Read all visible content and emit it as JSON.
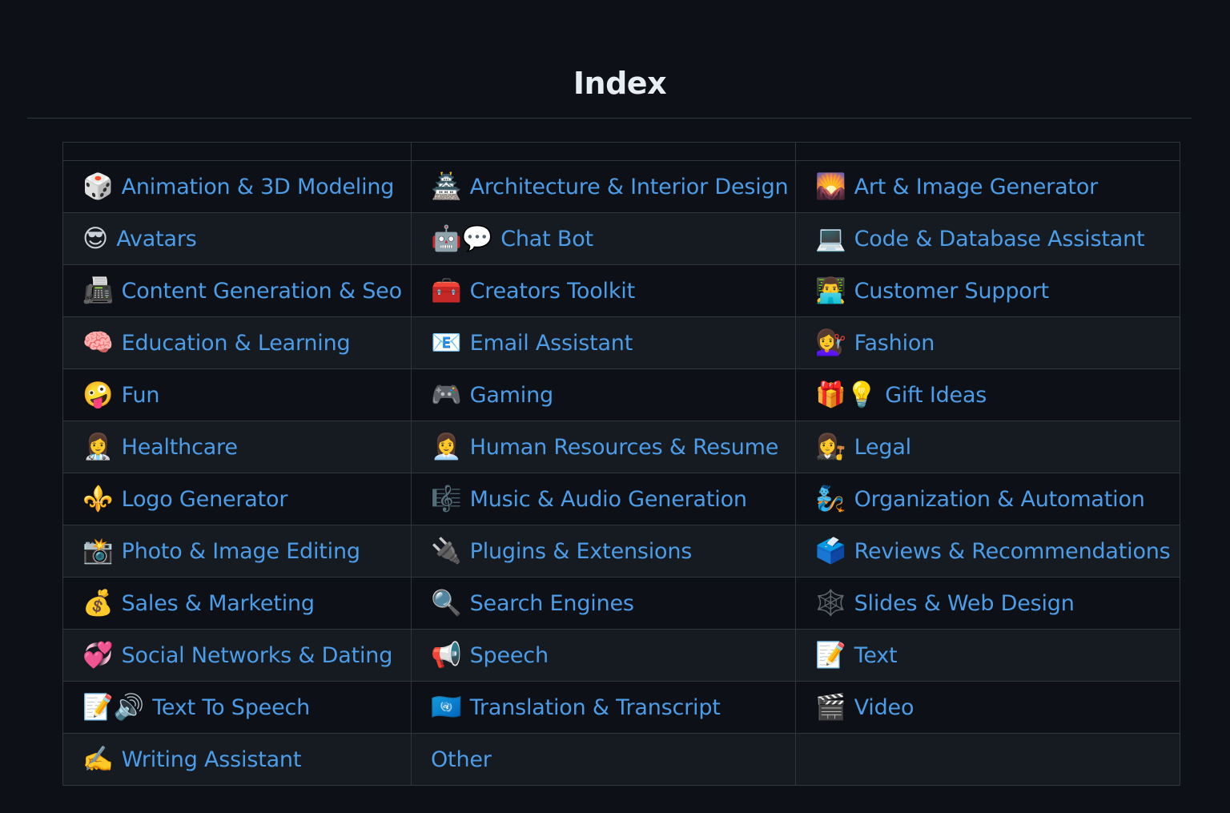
{
  "page": {
    "title": "Index"
  },
  "rows": [
    [
      {
        "icon": "🎲",
        "icon_name": "game-die-icon",
        "label": "Animation & 3D Modeling"
      },
      {
        "icon": "🏯",
        "icon_name": "japanese-castle-icon",
        "label": "Architecture & Interior Design"
      },
      {
        "icon": "🌄",
        "icon_name": "sunrise-over-mountains-icon",
        "label": "Art & Image Generator"
      }
    ],
    [
      {
        "icon": "😎",
        "icon_name": "sunglasses-face-icon",
        "label": "Avatars"
      },
      {
        "icon": "🤖💬",
        "icon_name": "robot-speech-bubble-icon",
        "label": "Chat Bot"
      },
      {
        "icon": "💻",
        "icon_name": "laptop-icon",
        "label": "Code & Database Assistant"
      }
    ],
    [
      {
        "icon": "📠",
        "icon_name": "fax-machine-icon",
        "label": "Content Generation & Seo"
      },
      {
        "icon": "🧰",
        "icon_name": "toolbox-icon",
        "label": "Creators Toolkit"
      },
      {
        "icon": "👨‍💻",
        "icon_name": "technologist-icon",
        "label": "Customer Support"
      }
    ],
    [
      {
        "icon": "🧠",
        "icon_name": "brain-icon",
        "label": "Education & Learning"
      },
      {
        "icon": "📧",
        "icon_name": "email-icon",
        "label": "Email Assistant"
      },
      {
        "icon": "💇‍♀️",
        "icon_name": "haircut-woman-icon",
        "label": "Fashion"
      }
    ],
    [
      {
        "icon": "🤪",
        "icon_name": "zany-face-icon",
        "label": "Fun"
      },
      {
        "icon": "🎮",
        "icon_name": "game-controller-icon",
        "label": "Gaming"
      },
      {
        "icon": "🎁💡",
        "icon_name": "gift-lightbulb-icon",
        "label": "Gift Ideas"
      }
    ],
    [
      {
        "icon": "👩‍⚕️",
        "icon_name": "health-worker-icon",
        "label": "Healthcare"
      },
      {
        "icon": "👩‍💼",
        "icon_name": "office-worker-icon",
        "label": "Human Resources & Resume"
      },
      {
        "icon": "👩‍⚖️",
        "icon_name": "judge-icon",
        "label": "Legal"
      }
    ],
    [
      {
        "icon": "⚜️",
        "icon_name": "fleur-de-lis-icon",
        "label": "Logo Generator"
      },
      {
        "icon": "🎼",
        "icon_name": "musical-score-icon",
        "label": "Music & Audio Generation"
      },
      {
        "icon": "🧞",
        "icon_name": "genie-icon",
        "label": "Organization & Automation"
      }
    ],
    [
      {
        "icon": "📸",
        "icon_name": "camera-flash-icon",
        "label": "Photo & Image Editing"
      },
      {
        "icon": "🔌",
        "icon_name": "electric-plug-icon",
        "label": "Plugins & Extensions"
      },
      {
        "icon": "🗳️",
        "icon_name": "ballot-box-icon",
        "label": "Reviews & Recommendations"
      }
    ],
    [
      {
        "icon": "💰",
        "icon_name": "money-bag-icon",
        "label": "Sales & Marketing"
      },
      {
        "icon": "🔍",
        "icon_name": "magnifying-glass-icon",
        "label": "Search Engines"
      },
      {
        "icon": "🕸️",
        "icon_name": "spider-web-icon",
        "label": "Slides & Web Design"
      }
    ],
    [
      {
        "icon": "💞",
        "icon_name": "revolving-hearts-icon",
        "label": "Social Networks & Dating"
      },
      {
        "icon": "📢",
        "icon_name": "loudspeaker-icon",
        "label": "Speech"
      },
      {
        "icon": "📝",
        "icon_name": "memo-icon",
        "label": "Text"
      }
    ],
    [
      {
        "icon": "📝🔊",
        "icon_name": "memo-speaker-icon",
        "label": "Text To Speech"
      },
      {
        "icon": "🇺🇳",
        "icon_name": "united-nations-flag-icon",
        "label": "Translation & Transcript"
      },
      {
        "icon": "🎬",
        "icon_name": "clapper-board-icon",
        "label": "Video"
      }
    ],
    [
      {
        "icon": "✍️",
        "icon_name": "writing-hand-icon",
        "label": "Writing Assistant"
      },
      {
        "icon": "",
        "icon_name": "",
        "label": "Other"
      },
      {
        "icon": "",
        "icon_name": "",
        "label": ""
      }
    ]
  ]
}
